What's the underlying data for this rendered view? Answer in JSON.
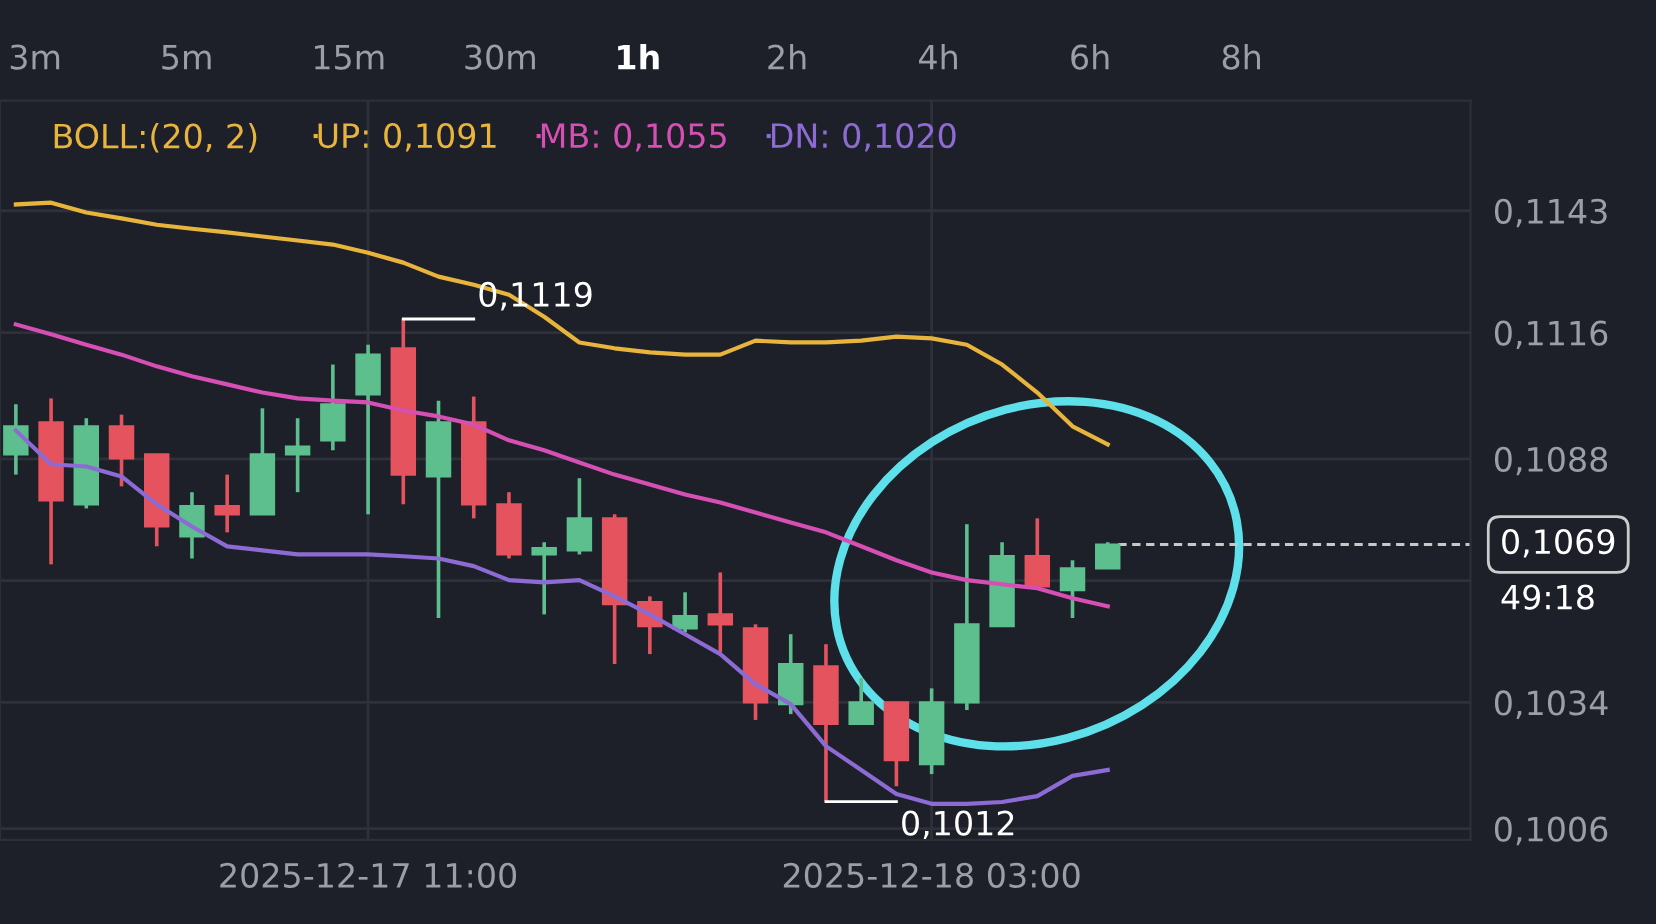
{
  "chart_data": [
    {
      "type": "candlestick",
      "categories": [
        null,
        null,
        null,
        null,
        null,
        null,
        null,
        null,
        null,
        null,
        "2025-12-17 11:00",
        null,
        null,
        null,
        null,
        null,
        null,
        null,
        null,
        null,
        null,
        null,
        null,
        null,
        null,
        null,
        "2025-12-18 03:00",
        null,
        null,
        null,
        null,
        null
      ],
      "ohlc": [
        [
          0.1089,
          0.11001,
          0.10845,
          0.10952
        ],
        [
          0.10961,
          0.11014,
          0.10646,
          0.10788
        ],
        [
          0.10779,
          0.1097,
          0.1077,
          0.10952
        ],
        [
          0.10952,
          0.10978,
          0.10819,
          0.10881
        ],
        [
          0.1089,
          0.1089,
          0.10686,
          0.1073
        ],
        [
          0.10708,
          0.10806,
          0.10659,
          0.10775
        ],
        [
          0.10775,
          0.10845,
          0.10717,
          0.10757
        ],
        [
          0.10757,
          0.10992,
          0.10757,
          0.1089
        ],
        [
          0.1089,
          0.1097,
          0.10806,
          0.10907
        ],
        [
          0.10921,
          0.11089,
          0.10899,
          0.11001
        ],
        [
          0.11023,
          0.11133,
          0.10757,
          0.11111
        ],
        [
          0.11125,
          0.1119,
          0.10779,
          0.10845
        ],
        [
          0.10841,
          0.11009,
          0.10527,
          0.10961
        ],
        [
          0.10961,
          0.11018,
          0.10748,
          0.10779
        ],
        [
          0.10779,
          0.10806,
          0.10659,
          0.10668
        ],
        [
          0.10668,
          0.10695,
          0.10535,
          0.10682
        ],
        [
          0.10677,
          0.10837,
          0.10668,
          0.10748
        ],
        [
          0.10748,
          0.10757,
          0.10425,
          0.10558
        ],
        [
          0.10562,
          0.10575,
          0.10447,
          0.10509
        ],
        [
          0.10504,
          0.10584,
          0.10495,
          0.10531
        ],
        [
          0.10535,
          0.10628,
          0.10451,
          0.10513
        ],
        [
          0.10504,
          0.10513,
          0.10301,
          0.1034
        ],
        [
          0.10336,
          0.10491,
          0.10314,
          0.10425
        ],
        [
          0.1042,
          0.10469,
          0.1012,
          0.10292
        ],
        [
          0.10292,
          0.10394,
          0.10292,
          0.1034
        ],
        [
          0.1034,
          0.1034,
          0.10154,
          0.10212
        ],
        [
          0.10203,
          0.10371,
          0.10181,
          0.1034
        ],
        [
          0.1034,
          0.10735,
          0.10323,
          0.10513
        ],
        [
          0.10509,
          0.10695,
          0.10509,
          0.10664
        ],
        [
          0.10664,
          0.10748,
          0.10597,
          0.10597
        ],
        [
          0.10589,
          0.10655,
          0.10527,
          0.10637
        ],
        [
          0.10637,
          0.10695,
          0.10637,
          0.1069
        ]
      ],
      "colors": [
        "#5cbf8d",
        "#e4535e",
        "#5cbf8d",
        "#e4535e",
        "#e4535e",
        "#5cbf8d",
        "#e4535e",
        "#5cbf8d",
        "#5cbf8d",
        "#5cbf8d",
        "#5cbf8d",
        "#e4535e",
        "#5cbf8d",
        "#e4535e",
        "#e4535e",
        "#5cbf8d",
        "#5cbf8d",
        "#e4535e",
        "#e4535e",
        "#5cbf8d",
        "#e4535e",
        "#e4535e",
        "#5cbf8d",
        "#e4535e",
        "#5cbf8d",
        "#e4535e",
        "#5cbf8d",
        "#5cbf8d",
        "#5cbf8d",
        "#e4535e",
        "#5cbf8d",
        "#5cbf8d"
      ],
      "series": [
        {
          "name": "UP: 0,1091",
          "type": "line",
          "color": "#e8b43c",
          "values": [
            0.11444,
            0.11448,
            0.11426,
            0.11413,
            0.11399,
            0.1139,
            0.11382,
            0.11373,
            0.11364,
            0.11355,
            0.11337,
            0.11315,
            0.11284,
            0.11266,
            0.11244,
            0.11195,
            0.11138,
            0.11125,
            0.11116,
            0.11111,
            0.11111,
            0.11142,
            0.11138,
            0.11138,
            0.11142,
            0.11151,
            0.11147,
            0.11133,
            0.11089,
            0.11027,
            0.10952,
            0.10912
          ]
        },
        {
          "name": "MB: 0,1055",
          "type": "line",
          "color": "#d64fb4",
          "values": [
            0.11178,
            0.11156,
            0.11133,
            0.11111,
            0.11085,
            0.11063,
            0.11045,
            0.11027,
            0.11014,
            0.11009,
            0.11005,
            0.10987,
            0.10974,
            0.10956,
            0.10921,
            0.10899,
            0.10872,
            0.10845,
            0.10823,
            0.10801,
            0.10783,
            0.10761,
            0.10739,
            0.10717,
            0.10686,
            0.10655,
            0.10628,
            0.10611,
            0.10602,
            0.10593,
            0.10571,
            0.10553
          ]
        },
        {
          "name": "DN: 0,1020",
          "type": "line",
          "color": "#8d6bd4",
          "values": [
            0.10943,
            0.10868,
            0.10863,
            0.10841,
            0.10779,
            0.1073,
            0.10686,
            0.10677,
            0.10668,
            0.10668,
            0.10668,
            0.10664,
            0.10659,
            0.10642,
            0.10611,
            0.10606,
            0.10611,
            0.10575,
            0.10535,
            0.10491,
            0.10447,
            0.1038,
            0.10336,
            0.10243,
            0.1019,
            0.10137,
            0.10115,
            0.10115,
            0.10119,
            0.10132,
            0.10177,
            0.1019
          ]
        }
      ],
      "ylim": [
        0.10035,
        0.11674
      ],
      "yticks": [
        {
          "value": 0.1143,
          "label": "0,1143"
        },
        {
          "value": 0.1116,
          "label": "0,1116"
        },
        {
          "value": 0.1088,
          "label": "0,1088"
        },
        {
          "value": 0.1061,
          "label": null
        },
        {
          "value": 0.1034,
          "label": "0,1034"
        },
        {
          "value": 0.1006,
          "label": "0,1006"
        }
      ],
      "grid": true,
      "legend": "top",
      "ref_lines": [
        {
          "axis": "y",
          "value": 0.1069,
          "label": "0,1069",
          "line_style": "dashed",
          "color": "#c8c8c8"
        }
      ],
      "annotations": [
        "BOLL:(20, 2)",
        "3m",
        "5m",
        "15m",
        "30m",
        "1h",
        "2h",
        "4h",
        "6h",
        "8h",
        {
          "text": "0,1119",
          "y": 0.1119
        },
        {
          "text": "0,1012",
          "y": 0.1012
        },
        "49:18"
      ]
    }
  ]
}
